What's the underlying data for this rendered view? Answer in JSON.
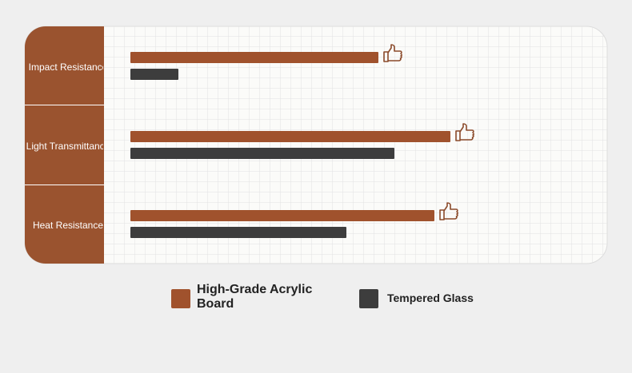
{
  "chart_data": {
    "type": "hbar",
    "categories": [
      "Impact Resistance",
      "Light Transmittance",
      "Heat Resistance"
    ],
    "series": [
      {
        "name": "High-Grade Acrylic Board",
        "color": "#a0522d",
        "values": [
          62,
          80,
          76
        ]
      },
      {
        "name": "Tempered Glass",
        "color": "#3d3d3d",
        "values": [
          12,
          66,
          54
        ]
      }
    ],
    "xlim": [
      0,
      100
    ]
  }
}
